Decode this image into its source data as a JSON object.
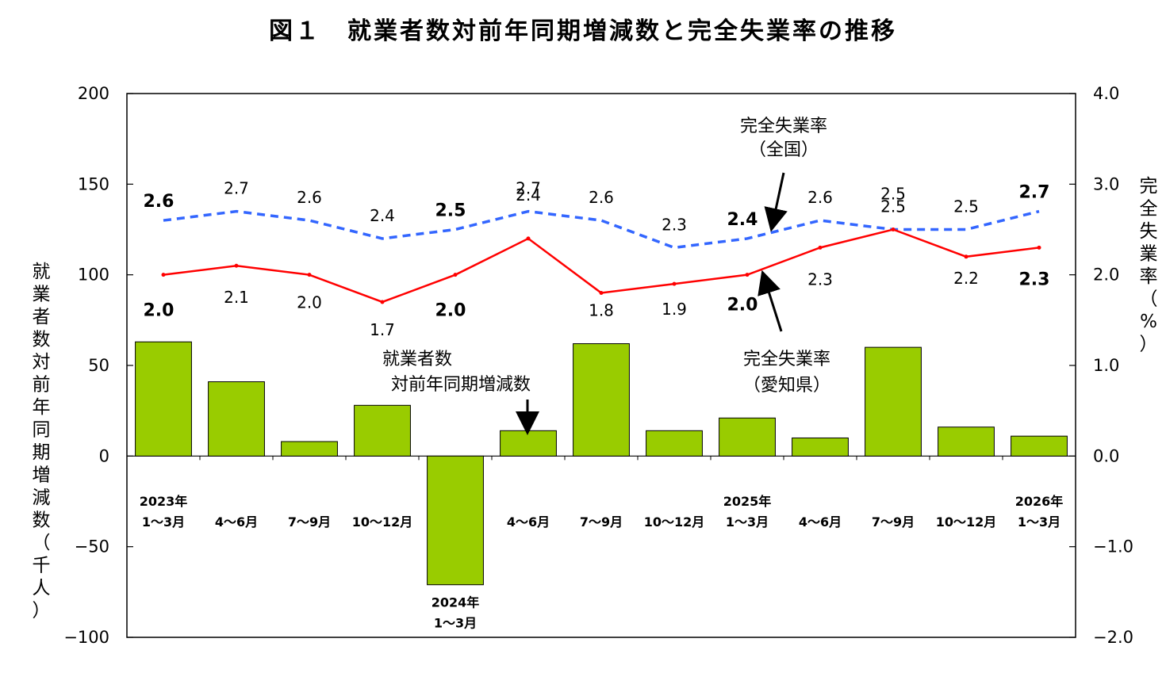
{
  "title": "図１　就業者数対前年同期増減数と完全失業率の推移",
  "chart_data": {
    "type": "bar",
    "categories": [
      [
        "2023年",
        "1～3月"
      ],
      [
        "",
        "4～6月"
      ],
      [
        "",
        "7～9月"
      ],
      [
        "",
        "10～12月"
      ],
      [
        "2024年",
        "1～3月"
      ],
      [
        "",
        "4～6月"
      ],
      [
        "",
        "7～9月"
      ],
      [
        "",
        "10～12月"
      ],
      [
        "2025年",
        "1～3月"
      ],
      [
        "",
        "4～6月"
      ],
      [
        "",
        "7～9月"
      ],
      [
        "",
        "10～12月"
      ],
      [
        "2026年",
        "1～3月"
      ]
    ],
    "series": [
      {
        "name": "就業者数対前年同期増減数",
        "kind": "bar",
        "axis": "left",
        "color": "#99cc00",
        "values": [
          63,
          41,
          8,
          28,
          -71,
          14,
          62,
          14,
          21,
          10,
          60,
          16,
          11
        ]
      },
      {
        "name": "完全失業率（全国）",
        "kind": "line",
        "style": "dashed",
        "axis": "right",
        "color": "#3366ff",
        "values": [
          2.6,
          2.7,
          2.6,
          2.4,
          2.5,
          2.7,
          2.6,
          2.3,
          2.4,
          2.6,
          2.5,
          2.5,
          2.7
        ],
        "labels": [
          "2.6",
          "2.7",
          "2.6",
          "2.4",
          "2.5",
          "2.7",
          "2.6",
          "2.3",
          "2.4",
          "2.6",
          "2.5",
          "2.5",
          "2.7"
        ]
      },
      {
        "name": "完全失業率（愛知県）",
        "kind": "line",
        "style": "solid",
        "axis": "right",
        "color": "#ff0000",
        "values": [
          2.0,
          2.1,
          2.0,
          1.7,
          2.0,
          2.4,
          1.8,
          1.9,
          2.0,
          2.3,
          2.5,
          2.2,
          2.3
        ],
        "labels": [
          "2.0",
          "2.1",
          "2.0",
          "1.7",
          "2.0",
          "2.4",
          "1.8",
          "1.9",
          "2.0",
          "2.3",
          "2.5",
          "2.2",
          "2.3"
        ]
      }
    ],
    "left_axis": {
      "title": "就業者数対前年同期増減数（千人）",
      "ylim": [
        -100,
        200
      ],
      "ticks": [
        "200",
        "150",
        "100",
        "50",
        "0",
        "−50",
        "−100"
      ]
    },
    "right_axis": {
      "title": "完全失業率（%）",
      "ylim": [
        -2.0,
        4.0
      ],
      "ticks": [
        "4.0",
        "3.0",
        "2.0",
        "1.0",
        "0.0",
        "−1.0",
        "−2.0"
      ]
    },
    "annotations": {
      "national": [
        "完全失業率",
        "（全国）"
      ],
      "aichi": [
        "完全失業率",
        "（愛知県）"
      ],
      "employment": [
        "就業者数",
        "対前年同期増減数"
      ]
    },
    "grid": false,
    "legend": "none"
  }
}
